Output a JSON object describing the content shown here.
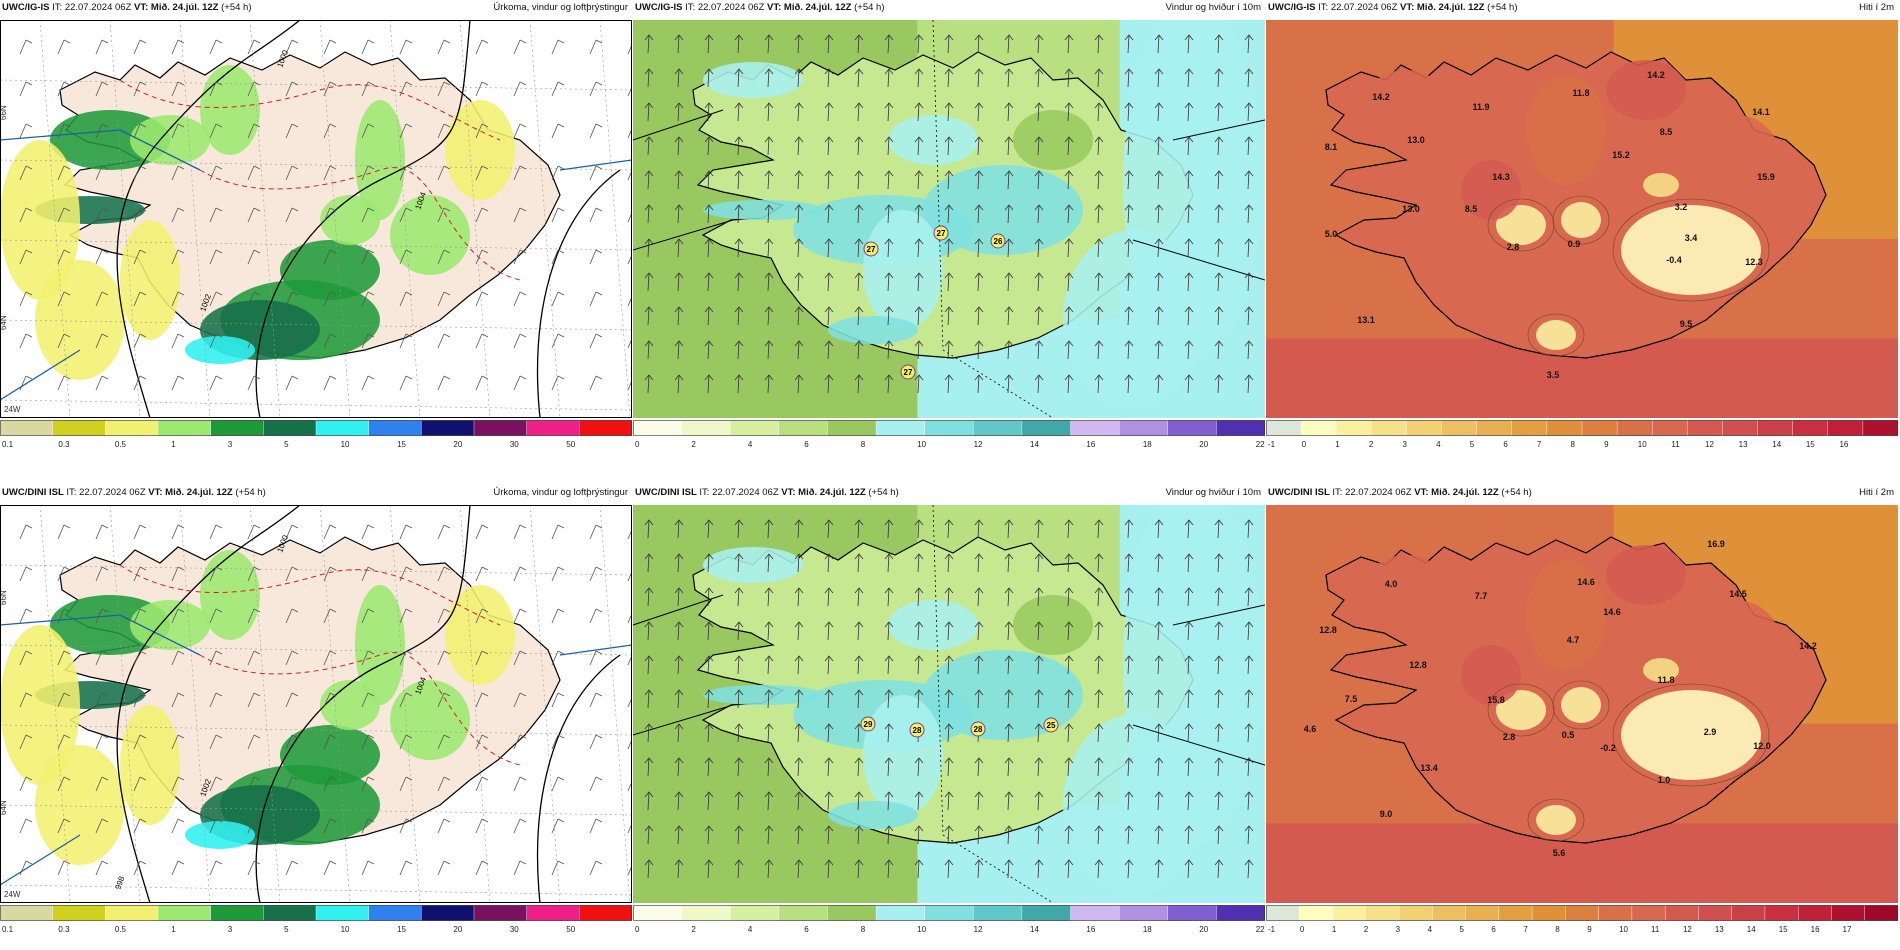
{
  "panels": [
    {
      "id": "p1",
      "model": "UWC/IG-IS",
      "it_label": "IT:",
      "it_value": "22.07.2024 06Z",
      "vt_label": "VT: Mið. 24.júl. 12Z",
      "lead": "(+54 h)",
      "title": "Úrkoma, vindur og loftþrýstingur",
      "type": "precip",
      "lat_labels": [
        "66N",
        "64N"
      ],
      "lon_labels": [
        "24W"
      ],
      "contour_labels": [
        "1000",
        "1002",
        "1004"
      ],
      "colorbar_ticks": [
        "0.1",
        "0.3",
        "0.5",
        "1",
        "3",
        "5",
        "10",
        "15",
        "20",
        "30",
        "50"
      ],
      "colorbar_colors": [
        "#d8d8a0",
        "#cfd020",
        "#f2f070",
        "#9ce870",
        "#1f9a3a",
        "#16704a",
        "#30f0f0",
        "#3080f0",
        "#101070",
        "#7a1060",
        "#f0208a",
        "#f01010"
      ],
      "value_labels": []
    },
    {
      "id": "p2",
      "model": "UWC/IG-IS",
      "it_label": "IT:",
      "it_value": "22.07.2024 06Z",
      "vt_label": "VT: Mið. 24.júl. 12Z",
      "lead": "(+54 h)",
      "title": "Vindur og hviður í 10m",
      "type": "wind",
      "lat_labels": [],
      "lon_labels": [],
      "contour_labels": [],
      "colorbar_ticks": [
        "0",
        "2",
        "4",
        "6",
        "8",
        "10",
        "12",
        "14",
        "16",
        "18",
        "20",
        "22"
      ],
      "colorbar_colors": [
        "#fbfde8",
        "#eef8c8",
        "#d6efa0",
        "#b8e080",
        "#9ac860",
        "#a8f0f0",
        "#80e0e0",
        "#60c8c8",
        "#40a8a8",
        "#d0b8f0",
        "#b090e0",
        "#8060d0",
        "#5030b0"
      ],
      "value_labels": [
        "27",
        "27",
        "26",
        "27"
      ]
    },
    {
      "id": "p3",
      "model": "UWC/IG-IS",
      "it_label": "IT:",
      "it_value": "22.07.2024 06Z",
      "vt_label": "VT: Mið. 24.júl. 12Z",
      "lead": "(+54 h)",
      "title": "Hiti í 2m",
      "type": "temp",
      "lat_labels": [],
      "lon_labels": [],
      "contour_labels": [],
      "colorbar_ticks": [
        "-1",
        "0",
        "1",
        "2",
        "3",
        "4",
        "5",
        "6",
        "7",
        "8",
        "9",
        "10",
        "11",
        "12",
        "13",
        "14",
        "15",
        "16"
      ],
      "colorbar_colors": [
        "#dde8d8",
        "#fffcc0",
        "#fbf0a0",
        "#f6e088",
        "#f0d070",
        "#ecc060",
        "#e8b050",
        "#e4a040",
        "#e09038",
        "#dc8040",
        "#d87048",
        "#d86850",
        "#d45a50",
        "#d05050",
        "#cc4048",
        "#c83040",
        "#c02038",
        "#b01030"
      ],
      "value_labels": [
        "14.2",
        "8.1",
        "13.0",
        "11.9",
        "11.8",
        "14.2",
        "8.5",
        "15.2",
        "14.3",
        "14.1",
        "13.0",
        "8.5",
        "3.2",
        "15.9",
        "5.0",
        "2.8",
        "0.9",
        "-0.4",
        "3.4",
        "12.3",
        "13.1",
        "9.5",
        "3.5"
      ]
    },
    {
      "id": "p4",
      "model": "UWC/DINI ISL",
      "it_label": "IT:",
      "it_value": "22.07.2024 06Z",
      "vt_label": "VT: Mið. 24.júl. 12Z",
      "lead": "(+54 h)",
      "title": "Úrkoma, vindur og loftþrýstingur",
      "type": "precip",
      "lat_labels": [
        "66N",
        "64N"
      ],
      "lon_labels": [
        "24W"
      ],
      "contour_labels": [
        "1000",
        "1002",
        "1004",
        "998"
      ],
      "colorbar_ticks": [
        "0.1",
        "0.3",
        "0.5",
        "1",
        "3",
        "5",
        "10",
        "15",
        "20",
        "30",
        "50"
      ],
      "colorbar_colors": [
        "#d8d8a0",
        "#cfd020",
        "#f2f070",
        "#9ce870",
        "#1f9a3a",
        "#16704a",
        "#30f0f0",
        "#3080f0",
        "#101070",
        "#7a1060",
        "#f0208a",
        "#f01010"
      ],
      "value_labels": []
    },
    {
      "id": "p5",
      "model": "UWC/DINI ISL",
      "it_label": "IT:",
      "it_value": "22.07.2024 06Z",
      "vt_label": "VT: Mið. 24.júl. 12Z",
      "lead": "(+54 h)",
      "title": "Vindur og hviður í 10m",
      "type": "wind",
      "lat_labels": [],
      "lon_labels": [],
      "contour_labels": [],
      "colorbar_ticks": [
        "0",
        "2",
        "4",
        "6",
        "8",
        "10",
        "12",
        "14",
        "16",
        "18",
        "20",
        "22"
      ],
      "colorbar_colors": [
        "#fbfde8",
        "#eef8c8",
        "#d6efa0",
        "#b8e080",
        "#9ac860",
        "#a8f0f0",
        "#80e0e0",
        "#60c8c8",
        "#40a8a8",
        "#d0b8f0",
        "#b090e0",
        "#8060d0",
        "#5030b0"
      ],
      "value_labels": [
        "29",
        "28",
        "28",
        "25"
      ]
    },
    {
      "id": "p6",
      "model": "UWC/DINI ISL",
      "it_label": "IT:",
      "it_value": "22.07.2024 06Z",
      "vt_label": "VT: Mið. 24.júl. 12Z",
      "lead": "(+54 h)",
      "title": "Hiti í 2m",
      "type": "temp",
      "lat_labels": [],
      "lon_labels": [],
      "contour_labels": [],
      "colorbar_ticks": [
        "-1",
        "0",
        "1",
        "2",
        "3",
        "4",
        "5",
        "6",
        "7",
        "8",
        "9",
        "10",
        "11",
        "12",
        "13",
        "14",
        "15",
        "16",
        "17"
      ],
      "colorbar_colors": [
        "#dde8d8",
        "#fffcc0",
        "#fbf0a0",
        "#f6e088",
        "#f0d070",
        "#ecc060",
        "#e8b050",
        "#e4a040",
        "#e09038",
        "#dc8040",
        "#d87048",
        "#d86850",
        "#d45a50",
        "#d05050",
        "#cc4048",
        "#c83040",
        "#c02038",
        "#b01030",
        "#a00828"
      ],
      "value_labels": [
        "16.9",
        "4.0",
        "12.8",
        "7.7",
        "14.6",
        "14.5",
        "12.8",
        "14.6",
        "4.7",
        "15.8",
        "11.8",
        "14.2",
        "7.5",
        "4.6",
        "2.8",
        "0.5",
        "-0.2",
        "2.9",
        "12.0",
        "13.4",
        "1.0",
        "9.0",
        "5.6"
      ]
    }
  ]
}
